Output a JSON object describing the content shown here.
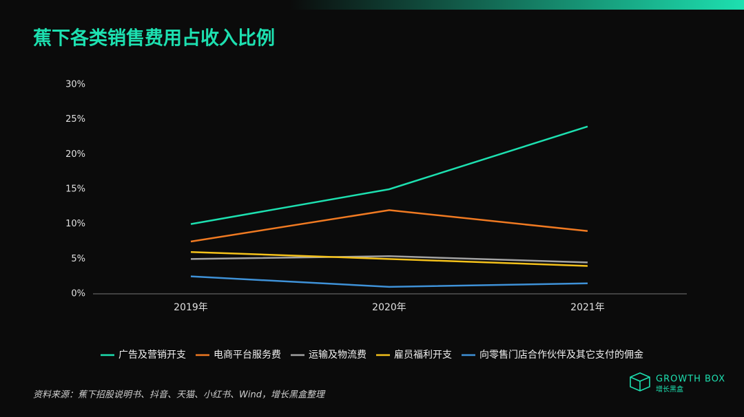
{
  "chart_data": {
    "type": "line",
    "title": "蕉下各类销售费用占收入比例",
    "categories": [
      "2019年",
      "2020年",
      "2021年"
    ],
    "series": [
      {
        "name": "广告及营销开支",
        "color": "#1de0b0",
        "values": [
          10,
          15,
          24
        ]
      },
      {
        "name": "电商平台服务费",
        "color": "#f07a22",
        "values": [
          7.5,
          12,
          9
        ]
      },
      {
        "name": "运输及物流费",
        "color": "#a3a3a3",
        "values": [
          5,
          5.4,
          4.5
        ]
      },
      {
        "name": "雇员福利开支",
        "color": "#f5c21b",
        "values": [
          6,
          5,
          4
        ]
      },
      {
        "name": "向零售门店合作伙伴及其它支付的佣金",
        "color": "#3f92d8",
        "values": [
          2.5,
          1,
          1.5
        ]
      }
    ],
    "ylim": [
      0,
      30
    ],
    "yticks": [
      {
        "value": 0,
        "label": "0%"
      },
      {
        "value": 5,
        "label": "5%"
      },
      {
        "value": 10,
        "label": "10%"
      },
      {
        "value": 15,
        "label": "15%"
      },
      {
        "value": 20,
        "label": "20%"
      },
      {
        "value": 25,
        "label": "25%"
      },
      {
        "value": 30,
        "label": "30%"
      }
    ],
    "grid": false,
    "legend": "bottom"
  },
  "footer": {
    "source": "资料来源：蕉下招股说明书、抖音、天猫、小红书、Wind，增长黑盒整理",
    "logo_text": "GROWTH BOX",
    "logo_subtext": "增长黑盒"
  }
}
